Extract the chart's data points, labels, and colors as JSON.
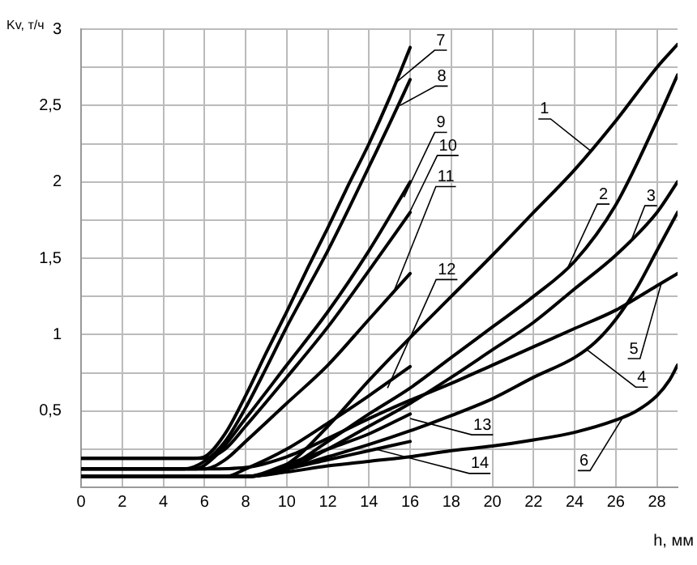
{
  "chart_data": {
    "type": "line",
    "xlabel": "h, мм",
    "ylabel": "Kv, т/ч",
    "xlim": [
      0,
      29
    ],
    "ylim": [
      0,
      3
    ],
    "xticks": [
      0,
      2,
      4,
      6,
      8,
      10,
      12,
      14,
      16,
      18,
      20,
      22,
      24,
      26,
      28
    ],
    "yticks": [
      {
        "value": 0,
        "label": null
      },
      {
        "value": 0.25,
        "label": null
      },
      {
        "value": 0.5,
        "label": "0,5"
      },
      {
        "value": 0.75,
        "label": null
      },
      {
        "value": 1,
        "label": "1"
      },
      {
        "value": 1.25,
        "label": null
      },
      {
        "value": 1.5,
        "label": "1,5"
      },
      {
        "value": 1.75,
        "label": null
      },
      {
        "value": 2,
        "label": "2"
      },
      {
        "value": 2.25,
        "label": null
      },
      {
        "value": 2.5,
        "label": "2,5"
      },
      {
        "value": 2.75,
        "label": null
      },
      {
        "value": 3,
        "label": "3"
      }
    ],
    "grid": true,
    "legend": false,
    "marker": "none",
    "line_style": "solid",
    "series": [
      {
        "color": "#000000",
        "x": [
          0,
          8,
          10,
          12,
          14,
          16,
          18,
          20,
          22,
          24,
          26,
          28,
          29
        ],
        "values": [
          0.07,
          0.07,
          0.15,
          0.4,
          0.7,
          0.98,
          1.25,
          1.52,
          1.8,
          2.08,
          2.4,
          2.75,
          2.9
        ]
      },
      {
        "color": "#000000",
        "x": [
          0,
          8,
          10,
          12,
          14,
          16,
          18,
          20,
          22,
          24,
          26,
          28,
          29
        ],
        "values": [
          0.07,
          0.07,
          0.13,
          0.3,
          0.48,
          0.65,
          0.85,
          1.05,
          1.25,
          1.48,
          1.85,
          2.4,
          2.7
        ]
      },
      {
        "color": "#000000",
        "x": [
          0,
          8,
          10,
          12,
          14,
          16,
          18,
          20,
          22,
          24,
          26,
          28,
          29
        ],
        "values": [
          0.07,
          0.07,
          0.12,
          0.25,
          0.4,
          0.55,
          0.72,
          0.9,
          1.08,
          1.3,
          1.52,
          1.8,
          2.0
        ]
      },
      {
        "color": "#000000",
        "x": [
          0,
          8,
          10,
          12,
          14,
          16,
          18,
          20,
          22,
          24,
          25,
          26,
          27,
          28,
          29
        ],
        "values": [
          0.07,
          0.07,
          0.12,
          0.2,
          0.28,
          0.37,
          0.47,
          0.58,
          0.72,
          0.85,
          0.95,
          1.1,
          1.3,
          1.55,
          1.8
        ]
      },
      {
        "color": "#000000",
        "x": [
          0,
          6,
          8,
          10,
          12,
          14,
          16,
          18,
          20,
          22,
          24,
          26,
          28,
          29
        ],
        "values": [
          0.12,
          0.12,
          0.13,
          0.2,
          0.32,
          0.45,
          0.57,
          0.68,
          0.8,
          0.92,
          1.04,
          1.16,
          1.32,
          1.4
        ]
      },
      {
        "color": "#000000",
        "x": [
          0,
          8,
          10,
          12,
          14,
          16,
          18,
          20,
          22,
          24,
          26,
          27,
          28,
          28.6,
          29
        ],
        "values": [
          0.07,
          0.07,
          0.1,
          0.14,
          0.17,
          0.2,
          0.24,
          0.27,
          0.31,
          0.36,
          0.44,
          0.5,
          0.6,
          0.7,
          0.8
        ]
      },
      {
        "color": "#000000",
        "x": [
          0,
          5.5,
          6,
          7,
          8,
          9,
          10,
          11,
          12,
          13,
          14,
          15,
          16
        ],
        "values": [
          0.19,
          0.19,
          0.2,
          0.35,
          0.6,
          0.88,
          1.15,
          1.43,
          1.7,
          1.98,
          2.25,
          2.55,
          2.88
        ]
      },
      {
        "color": "#000000",
        "x": [
          0,
          5,
          6,
          7,
          8,
          9,
          10,
          11,
          12,
          13,
          14,
          15,
          16
        ],
        "values": [
          0.12,
          0.12,
          0.17,
          0.3,
          0.52,
          0.78,
          1.05,
          1.3,
          1.55,
          1.82,
          2.1,
          2.38,
          2.67
        ]
      },
      {
        "color": "#000000",
        "x": [
          0,
          5.5,
          6.5,
          8,
          10,
          12,
          14,
          16
        ],
        "values": [
          0.12,
          0.12,
          0.2,
          0.45,
          0.8,
          1.15,
          1.55,
          2.0
        ]
      },
      {
        "color": "#000000",
        "x": [
          0,
          6,
          7,
          8,
          10,
          12,
          14,
          16
        ],
        "values": [
          0.19,
          0.19,
          0.25,
          0.4,
          0.72,
          1.05,
          1.42,
          1.8
        ]
      },
      {
        "color": "#000000",
        "x": [
          0,
          6,
          7,
          8,
          10,
          12,
          14,
          16
        ],
        "values": [
          0.12,
          0.12,
          0.18,
          0.3,
          0.55,
          0.8,
          1.1,
          1.4
        ]
      },
      {
        "color": "#000000",
        "x": [
          0,
          7,
          8,
          10,
          12,
          14,
          16
        ],
        "values": [
          0.07,
          0.07,
          0.12,
          0.25,
          0.42,
          0.6,
          0.79
        ]
      },
      {
        "color": "#000000",
        "x": [
          0,
          8,
          10,
          12,
          14,
          16
        ],
        "values": [
          0.07,
          0.07,
          0.15,
          0.25,
          0.35,
          0.48
        ]
      },
      {
        "color": "#000000",
        "x": [
          0,
          8,
          10,
          12,
          14,
          16
        ],
        "values": [
          0.07,
          0.07,
          0.12,
          0.18,
          0.24,
          0.3
        ]
      }
    ],
    "annotations": [
      {
        "text": "1",
        "x": 24.8,
        "y": 2.2
      },
      {
        "text": "2",
        "x": 23.6,
        "y": 1.42
      },
      {
        "text": "3",
        "x": 26.7,
        "y": 1.6
      },
      {
        "text": "4",
        "x": 24.6,
        "y": 0.9
      },
      {
        "text": "5",
        "x": 28.2,
        "y": 1.33
      },
      {
        "text": "6",
        "x": 26.4,
        "y": 0.47
      },
      {
        "text": "7",
        "x": 15.3,
        "y": 2.65
      },
      {
        "text": "8",
        "x": 15.5,
        "y": 2.5
      },
      {
        "text": "9",
        "x": 15.7,
        "y": 1.9
      },
      {
        "text": "10",
        "x": 15.9,
        "y": 1.78
      },
      {
        "text": "11",
        "x": 15.2,
        "y": 1.28
      },
      {
        "text": "12",
        "x": 14.9,
        "y": 0.65
      },
      {
        "text": "13",
        "x": 16,
        "y": 0.45
      },
      {
        "text": "14",
        "x": 14.3,
        "y": 0.25
      }
    ]
  }
}
